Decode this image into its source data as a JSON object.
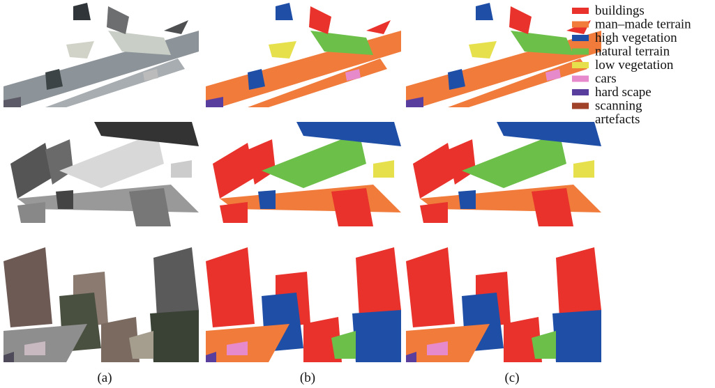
{
  "legend": [
    {
      "lines": [
        "buildings"
      ],
      "color": "#e8322b"
    },
    {
      "lines": [
        "man–made terrain"
      ],
      "color": "#f07b3a"
    },
    {
      "lines": [
        "high vegetation"
      ],
      "color": "#1f4ea6"
    },
    {
      "lines": [
        "natural terrain"
      ],
      "color": "#6cbf48"
    },
    {
      "lines": [
        "low vegetation"
      ],
      "color": "#e6e04c"
    },
    {
      "lines": [
        "cars"
      ],
      "color": "#e78acb"
    },
    {
      "lines": [
        "hard scape"
      ],
      "color": "#5a3e9e"
    },
    {
      "lines": [
        "scanning",
        "artefacts"
      ],
      "color": "#a0422a"
    }
  ],
  "captions": [
    "(a)",
    "(b)",
    "(c)"
  ]
}
